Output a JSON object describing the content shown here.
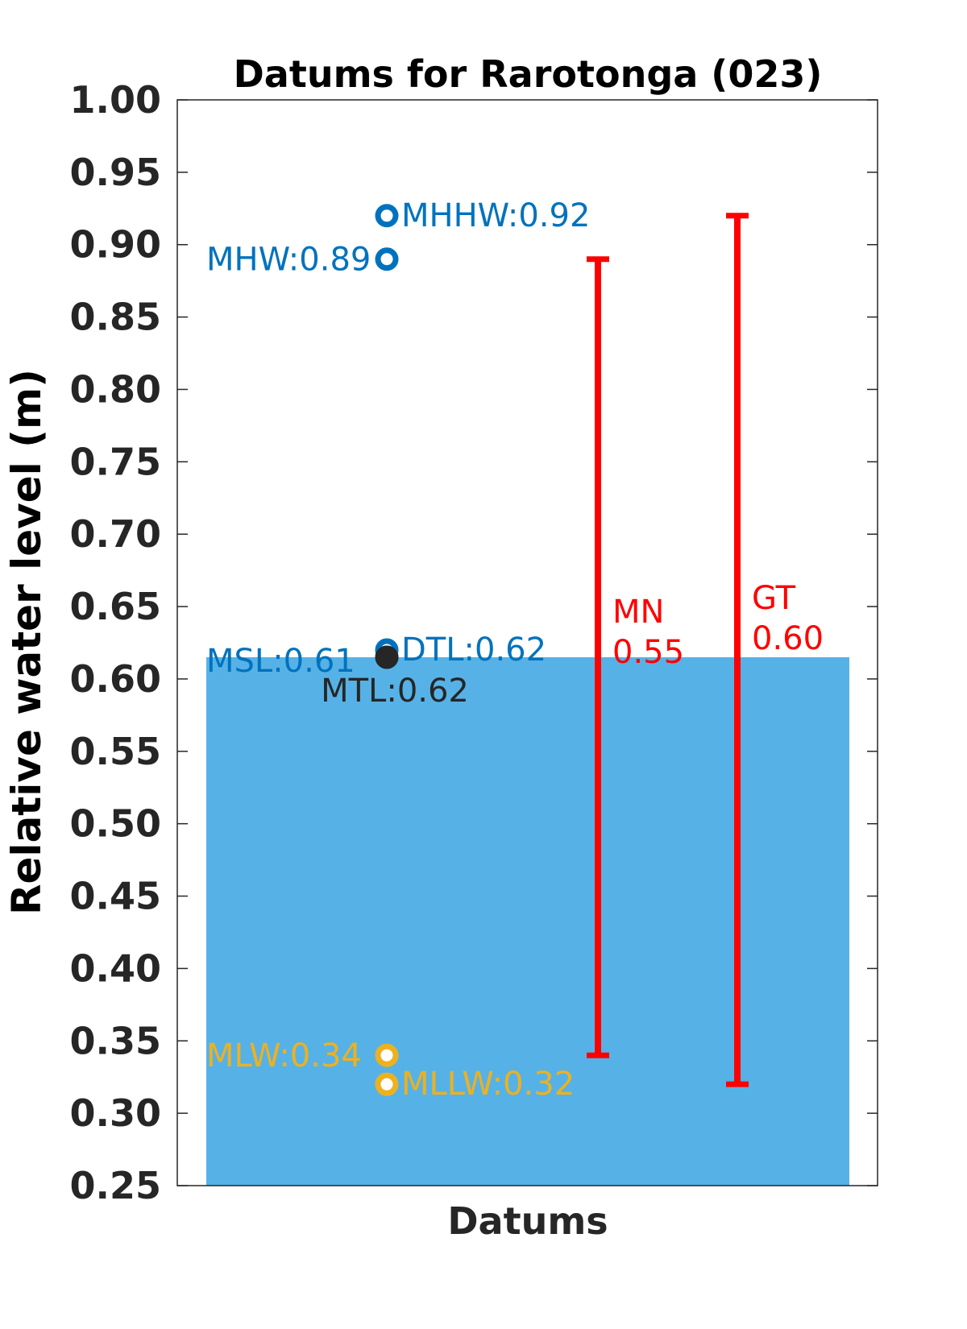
{
  "chart_data": {
    "type": "bar",
    "title": "Datums for Rarotonga (023)",
    "xlabel": "Datums",
    "ylabel": "Relative water level (m)",
    "ylim": [
      0.25,
      1.0
    ],
    "yticks": [
      "0.25",
      "0.30",
      "0.35",
      "0.40",
      "0.45",
      "0.50",
      "0.55",
      "0.60",
      "0.65",
      "0.70",
      "0.75",
      "0.80",
      "0.85",
      "0.90",
      "0.95",
      "1.00"
    ],
    "bar": {
      "value": 0.615,
      "color": "#56B2E6"
    },
    "datums": [
      {
        "name": "MHHW",
        "label": "MHHW:0.92",
        "value": 0.92,
        "color": "#0072BD",
        "side": "right"
      },
      {
        "name": "MHW",
        "label": "MHW:0.89",
        "value": 0.89,
        "color": "#0072BD",
        "side": "left"
      },
      {
        "name": "DTL",
        "label": "DTL:0.62",
        "value": 0.62,
        "color": "#0072BD",
        "side": "right"
      },
      {
        "name": "MSL",
        "label": "MSL:0.61",
        "value": 0.615,
        "color": "#0072BD",
        "side": "left"
      },
      {
        "name": "MTL",
        "label": "MTL:0.62",
        "value": 0.615,
        "color": "#262626",
        "side": "below"
      },
      {
        "name": "MLW",
        "label": "MLW:0.34",
        "value": 0.34,
        "color": "#EDB120",
        "side": "left"
      },
      {
        "name": "MLLW",
        "label": "MLLW:0.32",
        "value": 0.32,
        "color": "#EDB120",
        "side": "right"
      }
    ],
    "ranges": [
      {
        "name": "MN",
        "label_line1": "MN",
        "label_line2": "0.55",
        "low": 0.34,
        "high": 0.89,
        "color": "#FF0000"
      },
      {
        "name": "GT",
        "label_line1": "GT",
        "label_line2": "0.60",
        "low": 0.32,
        "high": 0.92,
        "color": "#FF0000"
      }
    ]
  }
}
